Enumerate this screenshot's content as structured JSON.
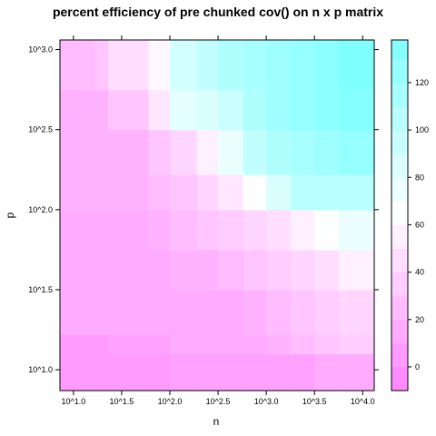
{
  "chart_data": {
    "type": "heatmap",
    "title": "percent efficiency of pre chunked cov() on n x p matrix",
    "xlabel": "n",
    "ylabel": "p",
    "x_scale": "log10",
    "y_scale": "log10",
    "x_ticks": [
      {
        "value": 1.0,
        "label": "10^1.0"
      },
      {
        "value": 1.5,
        "label": "10^1.5"
      },
      {
        "value": 2.0,
        "label": "10^2.0"
      },
      {
        "value": 2.5,
        "label": "10^2.5"
      },
      {
        "value": 3.0,
        "label": "10^3.0"
      },
      {
        "value": 3.5,
        "label": "10^3.5"
      },
      {
        "value": 4.0,
        "label": "10^4.0"
      }
    ],
    "y_ticks": [
      {
        "value": 1.0,
        "label": "10^1.0"
      },
      {
        "value": 1.5,
        "label": "10^1.5"
      },
      {
        "value": 2.0,
        "label": "10^2.0"
      },
      {
        "value": 2.5,
        "label": "10^2.5"
      },
      {
        "value": 3.0,
        "label": "10^3.0"
      }
    ],
    "x_range": [
      0.86,
      4.12
    ],
    "y_range": [
      0.87,
      3.06
    ],
    "x_edges": [
      0.86,
      1.22,
      1.36,
      1.78,
      2.0,
      2.28,
      2.5,
      2.76,
      3.0,
      3.25,
      3.5,
      3.75,
      4.12
    ],
    "y_edges": [
      0.87,
      1.1,
      1.22,
      1.5,
      1.75,
      2.0,
      2.22,
      2.5,
      2.75,
      3.06
    ],
    "z": [
      [
        5,
        5,
        5,
        5,
        10,
        10,
        10,
        10,
        10,
        10,
        15,
        15
      ],
      [
        5,
        5,
        10,
        10,
        15,
        15,
        15,
        15,
        20,
        25,
        30,
        35
      ],
      [
        15,
        15,
        15,
        15,
        15,
        15,
        15,
        20,
        25,
        30,
        35,
        40
      ],
      [
        15,
        15,
        15,
        15,
        20,
        20,
        25,
        30,
        35,
        40,
        45,
        55
      ],
      [
        15,
        15,
        15,
        20,
        25,
        30,
        35,
        40,
        45,
        55,
        65,
        75
      ],
      [
        20,
        20,
        20,
        25,
        30,
        40,
        50,
        65,
        85,
        105,
        105,
        105
      ],
      [
        20,
        20,
        20,
        30,
        40,
        55,
        75,
        100,
        110,
        115,
        120,
        125
      ],
      [
        20,
        20,
        30,
        50,
        80,
        85,
        95,
        110,
        120,
        125,
        130,
        135
      ],
      [
        25,
        30,
        45,
        60,
        90,
        100,
        110,
        115,
        120,
        125,
        130,
        140
      ]
    ],
    "colorbar": {
      "min": -10,
      "max": 138,
      "step": 10,
      "ticks": [
        0,
        20,
        40,
        60,
        80,
        100,
        120
      ],
      "tick_labels": [
        "0",
        "20",
        "40",
        "60",
        "80",
        "100",
        "120"
      ],
      "low_color": "#ff80ff",
      "mid_color": "#ffffff",
      "high_color": "#80ffff",
      "mid_value": 64
    },
    "grid": false,
    "legend": "colorbar-right"
  }
}
